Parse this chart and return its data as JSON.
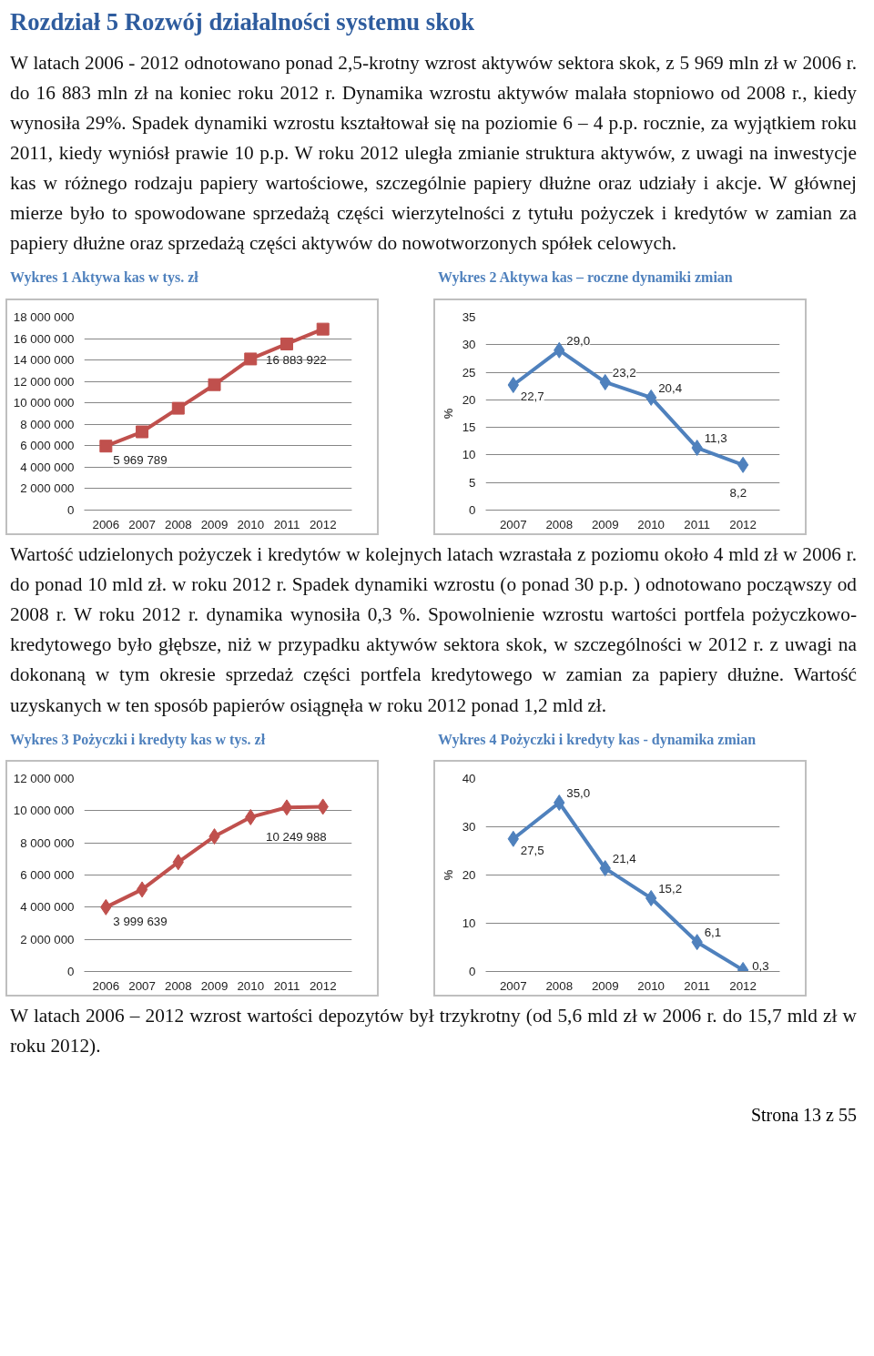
{
  "chart_data": [
    {
      "type": "line",
      "title": "Wykres 1 Aktywa kas w tys. zł",
      "categories": [
        "2006",
        "2007",
        "2008",
        "2009",
        "2010",
        "2011",
        "2012"
      ],
      "series": [
        {
          "color": "#c0504d",
          "values": [
            5969789,
            7300000,
            9500000,
            11700000,
            14100000,
            15500000,
            16883922
          ],
          "value_labels": [
            "5 969 789",
            null,
            null,
            null,
            null,
            null,
            "16 883 922"
          ]
        }
      ],
      "marker": "square",
      "grid": "y",
      "ylim": [
        0,
        18000000
      ],
      "yticks": [
        {
          "value": 0,
          "label": "0"
        },
        {
          "value": 2000000,
          "label": "2 000 000"
        },
        {
          "value": 4000000,
          "label": "4 000 000"
        },
        {
          "value": 6000000,
          "label": "6 000 000"
        },
        {
          "value": 8000000,
          "label": "8 000 000"
        },
        {
          "value": 10000000,
          "label": "10 000 000"
        },
        {
          "value": 12000000,
          "label": "12 000 000"
        },
        {
          "value": 14000000,
          "label": "14 000 000"
        },
        {
          "value": 16000000,
          "label": "16 000 000"
        },
        {
          "value": 18000000,
          "label": "18 000 000"
        }
      ],
      "annotations": [
        "Rozdział 5 Rozwój działalności systemu skok",
        "W latach 2006 - 2012 odnotowano ponad 2,5-krotny wzrost aktywów sektora skok, z 5 969 mln zł w 2006 r. do 16 883 mln zł na koniec roku 2012 r. Dynamika wzrostu aktywów malała stopniowo od 2008 r., kiedy wynosiła 29%. Spadek dynamiki wzrostu kształtował się na poziomie 6 – 4 p.p. rocznie, za wyjątkiem roku 2011, kiedy wyniósł prawie 10 p.p. W roku 2012 uległa zmianie struktura aktywów, z uwagi na inwestycje kas w różnego rodzaju papiery wartościowe, szczególnie papiery dłużne oraz udziały i akcje. W głównej mierze było to spowodowane sprzedażą części wierzytelności z tytułu pożyczek i kredytów w zamian za papiery dłużne oraz sprzedażą części aktywów do nowotworzonych spółek celowych."
      ]
    },
    {
      "type": "line",
      "title": "Wykres 2 Aktywa kas – roczne dynamiki zmian",
      "ylabel": "%",
      "categories": [
        "2007",
        "2008",
        "2009",
        "2010",
        "2011",
        "2012"
      ],
      "series": [
        {
          "color": "#4f81bd",
          "values": [
            22.7,
            29.0,
            23.2,
            20.4,
            11.3,
            8.2
          ],
          "value_labels": [
            "22,7",
            "29,0",
            "23,2",
            "20,4",
            "11,3",
            "8,2"
          ]
        }
      ],
      "marker": "diamond",
      "grid": "y",
      "ylim": [
        0,
        35
      ],
      "yticks": [
        0,
        5,
        10,
        15,
        20,
        25,
        30,
        35
      ]
    },
    {
      "type": "line",
      "title": "Wykres 3 Pożyczki i kredyty kas w tys. zł",
      "categories": [
        "2006",
        "2007",
        "2008",
        "2009",
        "2010",
        "2011",
        "2012"
      ],
      "series": [
        {
          "color": "#c0504d",
          "values": [
            3999639,
            5100000,
            6800000,
            8400000,
            9600000,
            10200000,
            10249988
          ],
          "value_labels": [
            "3 999 639",
            null,
            null,
            null,
            null,
            null,
            "10 249 988"
          ]
        }
      ],
      "marker": "diamond",
      "grid": "y",
      "ylim": [
        0,
        12000000
      ],
      "yticks": [
        {
          "value": 0,
          "label": "0"
        },
        {
          "value": 2000000,
          "label": "2 000 000"
        },
        {
          "value": 4000000,
          "label": "4 000 000"
        },
        {
          "value": 6000000,
          "label": "6 000 000"
        },
        {
          "value": 8000000,
          "label": "8 000 000"
        },
        {
          "value": 10000000,
          "label": "10 000 000"
        },
        {
          "value": 12000000,
          "label": "12 000 000"
        }
      ],
      "annotations": [
        "Wartość udzielonych pożyczek i kredytów w kolejnych latach wzrastała z poziomu około 4 mld zł w 2006 r. do ponad 10 mld zł. w roku 2012 r. Spadek dynamiki wzrostu (o ponad 30 p.p. ) odnotowano począwszy od 2008 r. W roku 2012 r. dynamika wynosiła 0,3 %. Spowolnienie wzrostu wartości portfela pożyczkowo-kredytowego było głębsze, niż w przypadku aktywów sektora skok, w szczególności w 2012 r. z uwagi na dokonaną w tym okresie sprzedaż części portfela kredytowego w zamian za papiery dłużne. Wartość uzyskanych w ten sposób papierów osiągnęła w roku 2012 ponad 1,2 mld zł."
      ]
    },
    {
      "type": "line",
      "title": "Wykres 4 Pożyczki i kredyty kas - dynamika zmian",
      "ylabel": "%",
      "categories": [
        "2007",
        "2008",
        "2009",
        "2010",
        "2011",
        "2012"
      ],
      "series": [
        {
          "color": "#4f81bd",
          "values": [
            27.5,
            35.0,
            21.4,
            15.2,
            6.1,
            0.3
          ],
          "value_labels": [
            "27,5",
            "35,0",
            "21,4",
            "15,2",
            "6,1",
            "0,3"
          ]
        }
      ],
      "marker": "diamond",
      "grid": "y",
      "ylim": [
        0,
        40
      ],
      "yticks": [
        0,
        10,
        20,
        30,
        40
      ],
      "annotations": [
        "W latach 2006 – 2012 wzrost wartości depozytów był trzykrotny (od 5,6 mld zł w 2006 r. do 15,7 mld zł w roku 2012).",
        "Strona 13 z 55"
      ]
    }
  ]
}
